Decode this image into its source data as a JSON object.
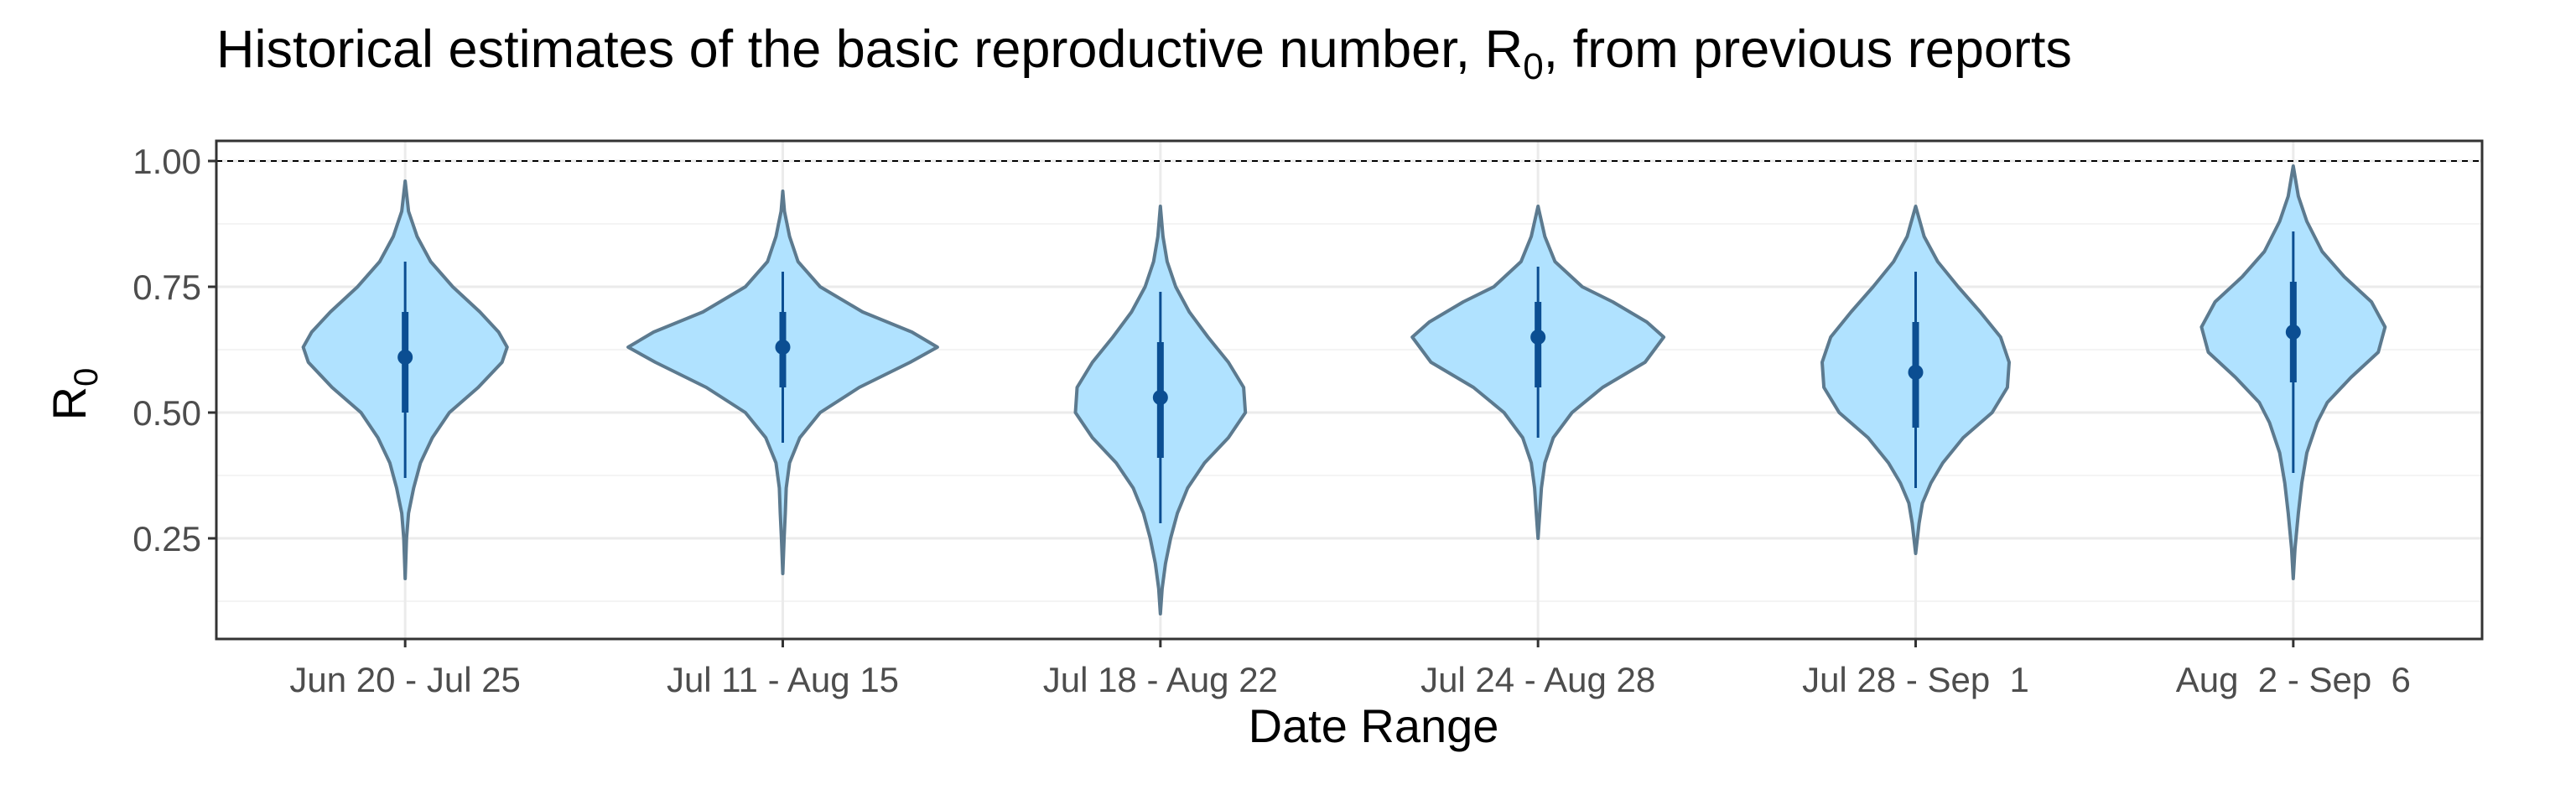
{
  "chart_data": {
    "type": "violin",
    "title": "Historical estimates of the basic reproductive number, R",
    "title_subscript": "0",
    "title_suffix": ", from previous reports",
    "xlabel": "Date Range",
    "ylabel": "R",
    "ylabel_subscript": "0",
    "ylim": [
      0.05,
      1.04
    ],
    "yticks": [
      0.25,
      0.5,
      0.75,
      1.0
    ],
    "ytick_labels": [
      "0.25",
      "0.50",
      "0.75",
      "1.00"
    ],
    "reference_line": 1.0,
    "grid": true,
    "categories": [
      "Jun 20 - Jul 25",
      "Jul 11 - Aug 15",
      "Jul 18 - Aug 22",
      "Jul 24 - Aug 28",
      "Jul 28 - Sep  1",
      "Aug  2 - Sep  6"
    ],
    "series": [
      {
        "category": "Jun 20 - Jul 25",
        "min": 0.17,
        "max": 0.96,
        "median": 0.61,
        "inner_interval": [
          0.5,
          0.7
        ],
        "outer_interval": [
          0.37,
          0.8
        ],
        "profile": [
          [
            0.17,
            0.0
          ],
          [
            0.25,
            0.008
          ],
          [
            0.3,
            0.02
          ],
          [
            0.35,
            0.05
          ],
          [
            0.4,
            0.09
          ],
          [
            0.45,
            0.16
          ],
          [
            0.5,
            0.26
          ],
          [
            0.55,
            0.43
          ],
          [
            0.6,
            0.57
          ],
          [
            0.63,
            0.6
          ],
          [
            0.66,
            0.55
          ],
          [
            0.7,
            0.44
          ],
          [
            0.75,
            0.28
          ],
          [
            0.8,
            0.15
          ],
          [
            0.85,
            0.07
          ],
          [
            0.9,
            0.02
          ],
          [
            0.96,
            0.0
          ]
        ]
      },
      {
        "category": "Jul 11 - Aug 15",
        "min": 0.18,
        "max": 0.94,
        "median": 0.63,
        "inner_interval": [
          0.55,
          0.7
        ],
        "outer_interval": [
          0.44,
          0.78
        ],
        "profile": [
          [
            0.18,
            0.0
          ],
          [
            0.25,
            0.008
          ],
          [
            0.3,
            0.015
          ],
          [
            0.35,
            0.02
          ],
          [
            0.4,
            0.04
          ],
          [
            0.45,
            0.1
          ],
          [
            0.5,
            0.22
          ],
          [
            0.55,
            0.45
          ],
          [
            0.6,
            0.75
          ],
          [
            0.63,
            0.91
          ],
          [
            0.66,
            0.76
          ],
          [
            0.7,
            0.47
          ],
          [
            0.75,
            0.22
          ],
          [
            0.8,
            0.09
          ],
          [
            0.85,
            0.04
          ],
          [
            0.9,
            0.01
          ],
          [
            0.94,
            0.0
          ]
        ]
      },
      {
        "category": "Jul 18 - Aug 22",
        "min": 0.1,
        "max": 0.91,
        "median": 0.53,
        "inner_interval": [
          0.41,
          0.64
        ],
        "outer_interval": [
          0.28,
          0.74
        ],
        "profile": [
          [
            0.1,
            0.0
          ],
          [
            0.15,
            0.01
          ],
          [
            0.2,
            0.03
          ],
          [
            0.25,
            0.06
          ],
          [
            0.3,
            0.1
          ],
          [
            0.35,
            0.16
          ],
          [
            0.4,
            0.26
          ],
          [
            0.45,
            0.4
          ],
          [
            0.5,
            0.5
          ],
          [
            0.55,
            0.49
          ],
          [
            0.6,
            0.4
          ],
          [
            0.65,
            0.28
          ],
          [
            0.7,
            0.17
          ],
          [
            0.75,
            0.09
          ],
          [
            0.8,
            0.04
          ],
          [
            0.85,
            0.015
          ],
          [
            0.91,
            0.0
          ]
        ]
      },
      {
        "category": "Jul 24 - Aug 28",
        "min": 0.25,
        "max": 0.91,
        "median": 0.65,
        "inner_interval": [
          0.55,
          0.72
        ],
        "outer_interval": [
          0.45,
          0.79
        ],
        "profile": [
          [
            0.25,
            0.0
          ],
          [
            0.3,
            0.01
          ],
          [
            0.35,
            0.02
          ],
          [
            0.4,
            0.04
          ],
          [
            0.45,
            0.09
          ],
          [
            0.5,
            0.2
          ],
          [
            0.55,
            0.38
          ],
          [
            0.6,
            0.63
          ],
          [
            0.65,
            0.74
          ],
          [
            0.68,
            0.64
          ],
          [
            0.72,
            0.44
          ],
          [
            0.75,
            0.26
          ],
          [
            0.8,
            0.1
          ],
          [
            0.85,
            0.04
          ],
          [
            0.91,
            0.0
          ]
        ]
      },
      {
        "category": "Jul 28 - Sep  1",
        "min": 0.22,
        "max": 0.91,
        "median": 0.58,
        "inner_interval": [
          0.47,
          0.68
        ],
        "outer_interval": [
          0.35,
          0.78
        ],
        "profile": [
          [
            0.22,
            0.0
          ],
          [
            0.28,
            0.02
          ],
          [
            0.32,
            0.04
          ],
          [
            0.36,
            0.09
          ],
          [
            0.4,
            0.16
          ],
          [
            0.45,
            0.28
          ],
          [
            0.5,
            0.45
          ],
          [
            0.55,
            0.54
          ],
          [
            0.6,
            0.55
          ],
          [
            0.65,
            0.5
          ],
          [
            0.7,
            0.38
          ],
          [
            0.75,
            0.25
          ],
          [
            0.8,
            0.13
          ],
          [
            0.85,
            0.05
          ],
          [
            0.91,
            0.0
          ]
        ]
      },
      {
        "category": "Aug  2 - Sep  6",
        "min": 0.17,
        "max": 0.99,
        "median": 0.66,
        "inner_interval": [
          0.56,
          0.76
        ],
        "outer_interval": [
          0.38,
          0.86
        ],
        "profile": [
          [
            0.17,
            0.0
          ],
          [
            0.23,
            0.01
          ],
          [
            0.3,
            0.03
          ],
          [
            0.36,
            0.05
          ],
          [
            0.42,
            0.08
          ],
          [
            0.48,
            0.14
          ],
          [
            0.52,
            0.2
          ],
          [
            0.57,
            0.34
          ],
          [
            0.62,
            0.5
          ],
          [
            0.67,
            0.54
          ],
          [
            0.72,
            0.46
          ],
          [
            0.77,
            0.3
          ],
          [
            0.82,
            0.17
          ],
          [
            0.88,
            0.08
          ],
          [
            0.93,
            0.03
          ],
          [
            0.99,
            0.0
          ]
        ]
      }
    ],
    "colors": {
      "violin_fill": "#b0e2ff",
      "violin_outline": "#5c7a8f",
      "interval": "#0b4e92",
      "median_point": "#0b4e92",
      "reference_line": "#000000",
      "grid_major": "#ebebeb",
      "grid_minor": "#f4f4f4",
      "panel_border": "#333333"
    }
  }
}
